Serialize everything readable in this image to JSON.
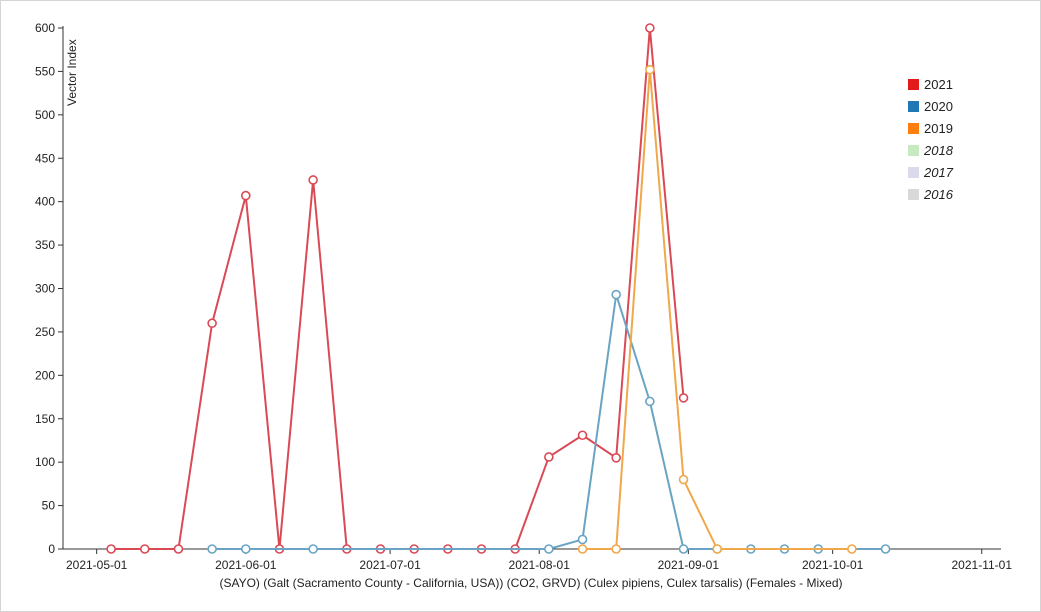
{
  "chart_data": {
    "type": "line",
    "title": "",
    "xlabel": "(SAYO) (Galt (Sacramento County - California, USA)) (CO2, GRVD) (Culex pipiens, Culex tarsalis) (Females - Mixed)",
    "ylabel": "Vector Index",
    "ylim": [
      0,
      600
    ],
    "yticks": [
      0,
      50,
      100,
      150,
      200,
      250,
      300,
      350,
      400,
      450,
      500,
      550,
      600
    ],
    "xlim": [
      "2021-04-24",
      "2021-11-05"
    ],
    "xticks": [
      "2021-05-01",
      "2021-06-01",
      "2021-07-01",
      "2021-08-01",
      "2021-09-01",
      "2021-10-01",
      "2021-11-01"
    ],
    "legend_position": "right",
    "grid": false,
    "series": [
      {
        "name": "2021",
        "color": "#e31a1c",
        "line_color": "#d94a55",
        "italic": false,
        "points": [
          [
            "2021-05-04",
            0
          ],
          [
            "2021-05-11",
            0
          ],
          [
            "2021-05-18",
            0
          ],
          [
            "2021-05-25",
            260
          ],
          [
            "2021-06-01",
            407
          ],
          [
            "2021-06-08",
            0
          ],
          [
            "2021-06-15",
            425
          ],
          [
            "2021-06-22",
            0
          ],
          [
            "2021-06-29",
            0
          ],
          [
            "2021-07-06",
            0
          ],
          [
            "2021-07-13",
            0
          ],
          [
            "2021-07-20",
            0
          ],
          [
            "2021-07-27",
            0
          ],
          [
            "2021-08-03",
            106
          ],
          [
            "2021-08-10",
            131
          ],
          [
            "2021-08-17",
            105
          ],
          [
            "2021-08-24",
            600
          ],
          [
            "2021-08-31",
            174
          ]
        ]
      },
      {
        "name": "2020",
        "color": "#1f78b4",
        "line_color": "#6aa4c4",
        "italic": false,
        "points": [
          [
            "2021-05-25",
            0
          ],
          [
            "2021-06-01",
            0
          ],
          [
            "2021-06-15",
            0
          ],
          [
            "2021-08-03",
            0
          ],
          [
            "2021-08-10",
            11
          ],
          [
            "2021-08-17",
            293
          ],
          [
            "2021-08-24",
            170
          ],
          [
            "2021-08-31",
            0
          ],
          [
            "2021-09-07",
            0
          ],
          [
            "2021-09-14",
            0
          ],
          [
            "2021-09-21",
            0
          ],
          [
            "2021-09-28",
            0
          ],
          [
            "2021-10-12",
            0
          ]
        ]
      },
      {
        "name": "2019",
        "color": "#ff7f0e",
        "line_color": "#f0a84a",
        "italic": false,
        "points": [
          [
            "2021-08-10",
            0
          ],
          [
            "2021-08-17",
            0
          ],
          [
            "2021-08-24",
            552
          ],
          [
            "2021-08-31",
            80
          ],
          [
            "2021-09-07",
            0
          ],
          [
            "2021-10-05",
            0
          ]
        ]
      },
      {
        "name": "2018",
        "color": "#c7e9c0",
        "italic": true,
        "points": []
      },
      {
        "name": "2017",
        "color": "#dadaeb",
        "italic": true,
        "points": []
      },
      {
        "name": "2016",
        "color": "#d9d9d9",
        "italic": true,
        "points": []
      }
    ]
  }
}
